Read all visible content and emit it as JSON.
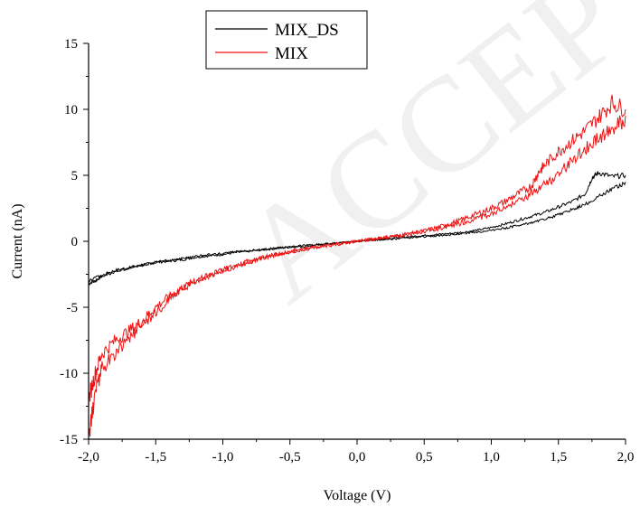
{
  "watermark": "ACCEPTED",
  "chart_data": {
    "type": "line",
    "title": "",
    "xlabel": "Voltage (V)",
    "ylabel": "Current (nA)",
    "xlim": [
      -2.0,
      2.0
    ],
    "ylim": [
      -15,
      15
    ],
    "x_ticks": [
      -2.0,
      -1.5,
      -1.0,
      -0.5,
      0.0,
      0.5,
      1.0,
      1.5,
      2.0
    ],
    "x_tick_labels": [
      "-2,0",
      "-1,5",
      "-1,0",
      "-0,5",
      "0,0",
      "0,5",
      "1,0",
      "1,5",
      "2,0"
    ],
    "y_ticks": [
      -15,
      -10,
      -5,
      0,
      5,
      10,
      15
    ],
    "y_tick_labels": [
      "-15",
      "-10",
      "-5",
      "0",
      "5",
      "10",
      "15"
    ],
    "grid": false,
    "legend_position": "top-center",
    "series": [
      {
        "name": "MIX_DS",
        "color": "#000000",
        "x": [
          -2.0,
          -1.95,
          -1.9,
          -1.8,
          -1.7,
          -1.6,
          -1.5,
          -1.4,
          -1.3,
          -1.2,
          -1.1,
          -1.0,
          -0.9,
          -0.8,
          -0.7,
          -0.6,
          -0.5,
          -0.4,
          -0.3,
          -0.2,
          -0.1,
          0.0,
          0.1,
          0.2,
          0.3,
          0.4,
          0.5,
          0.6,
          0.7,
          0.8,
          0.9,
          1.0,
          1.1,
          1.2,
          1.3,
          1.4,
          1.5,
          1.6,
          1.7,
          1.75,
          1.8,
          1.9,
          2.0
        ],
        "y": [
          -3.2,
          -3.0,
          -2.6,
          -2.2,
          -2.0,
          -1.8,
          -1.6,
          -1.5,
          -1.4,
          -1.2,
          -1.1,
          -1.0,
          -0.85,
          -0.75,
          -0.65,
          -0.55,
          -0.45,
          -0.38,
          -0.3,
          -0.2,
          -0.1,
          0.0,
          0.1,
          0.18,
          0.28,
          0.36,
          0.45,
          0.52,
          0.6,
          0.7,
          0.85,
          1.05,
          1.3,
          1.6,
          1.9,
          2.2,
          2.6,
          3.0,
          3.6,
          4.8,
          5.2,
          4.9,
          5.0
        ],
        "x_return": [
          2.0,
          1.9,
          1.8,
          1.7,
          1.6,
          1.5,
          1.4,
          1.3,
          1.2,
          1.1,
          1.0,
          0.9,
          0.8,
          0.7,
          0.6,
          0.5,
          0.4,
          0.3,
          0.2,
          0.1,
          0.0,
          -0.1,
          -0.2,
          -0.3,
          -0.4,
          -0.5,
          -0.6,
          -0.7,
          -0.8,
          -0.9,
          -1.0,
          -1.1,
          -1.2,
          -1.3,
          -1.4,
          -1.5,
          -1.6,
          -1.7,
          -1.8,
          -1.9,
          -2.0
        ],
        "y_return": [
          4.4,
          4.0,
          3.4,
          2.8,
          2.4,
          2.0,
          1.7,
          1.4,
          1.2,
          1.0,
          0.85,
          0.7,
          0.6,
          0.5,
          0.42,
          0.35,
          0.28,
          0.2,
          0.14,
          0.07,
          0.0,
          -0.08,
          -0.16,
          -0.24,
          -0.32,
          -0.42,
          -0.5,
          -0.6,
          -0.7,
          -0.8,
          -0.9,
          -1.0,
          -1.15,
          -1.3,
          -1.45,
          -1.6,
          -1.8,
          -2.0,
          -2.3,
          -2.6,
          -3.0
        ]
      },
      {
        "name": "MIX",
        "color": "#ee1111",
        "x": [
          -2.0,
          -1.95,
          -1.9,
          -1.8,
          -1.7,
          -1.6,
          -1.5,
          -1.4,
          -1.3,
          -1.2,
          -1.1,
          -1.0,
          -0.9,
          -0.8,
          -0.7,
          -0.6,
          -0.5,
          -0.4,
          -0.3,
          -0.2,
          -0.1,
          0.0,
          0.1,
          0.2,
          0.3,
          0.4,
          0.5,
          0.6,
          0.7,
          0.8,
          0.9,
          1.0,
          1.1,
          1.2,
          1.3,
          1.35,
          1.4,
          1.5,
          1.6,
          1.7,
          1.8,
          1.9,
          2.0
        ],
        "y": [
          -12.0,
          -10.0,
          -8.5,
          -7.5,
          -6.8,
          -6.0,
          -5.0,
          -4.2,
          -3.5,
          -3.0,
          -2.6,
          -2.2,
          -1.8,
          -1.5,
          -1.25,
          -1.0,
          -0.8,
          -0.6,
          -0.42,
          -0.28,
          -0.14,
          0.0,
          0.14,
          0.28,
          0.42,
          0.58,
          0.8,
          1.05,
          1.35,
          1.7,
          2.1,
          2.5,
          3.0,
          3.6,
          4.2,
          5.2,
          5.8,
          6.8,
          7.6,
          8.4,
          9.4,
          10.5,
          10.0
        ],
        "x_return": [
          2.0,
          1.9,
          1.8,
          1.7,
          1.6,
          1.5,
          1.4,
          1.3,
          1.2,
          1.1,
          1.0,
          0.9,
          0.8,
          0.7,
          0.6,
          0.5,
          0.4,
          0.3,
          0.2,
          0.1,
          0.0,
          -0.1,
          -0.2,
          -0.3,
          -0.4,
          -0.5,
          -0.6,
          -0.7,
          -0.8,
          -0.9,
          -1.0,
          -1.1,
          -1.2,
          -1.3,
          -1.4,
          -1.5,
          -1.6,
          -1.7,
          -1.8,
          -1.9,
          -1.95,
          -2.0
        ],
        "y_return": [
          9.2,
          8.6,
          7.8,
          7.0,
          6.2,
          5.0,
          4.4,
          3.6,
          3.0,
          2.5,
          2.1,
          1.75,
          1.45,
          1.2,
          0.95,
          0.75,
          0.58,
          0.42,
          0.28,
          0.14,
          0.0,
          -0.15,
          -0.3,
          -0.45,
          -0.62,
          -0.8,
          -1.0,
          -1.25,
          -1.55,
          -1.9,
          -2.2,
          -2.6,
          -3.0,
          -3.6,
          -4.4,
          -5.4,
          -6.4,
          -7.4,
          -8.4,
          -9.6,
          -11.5,
          -14.8
        ]
      }
    ]
  }
}
